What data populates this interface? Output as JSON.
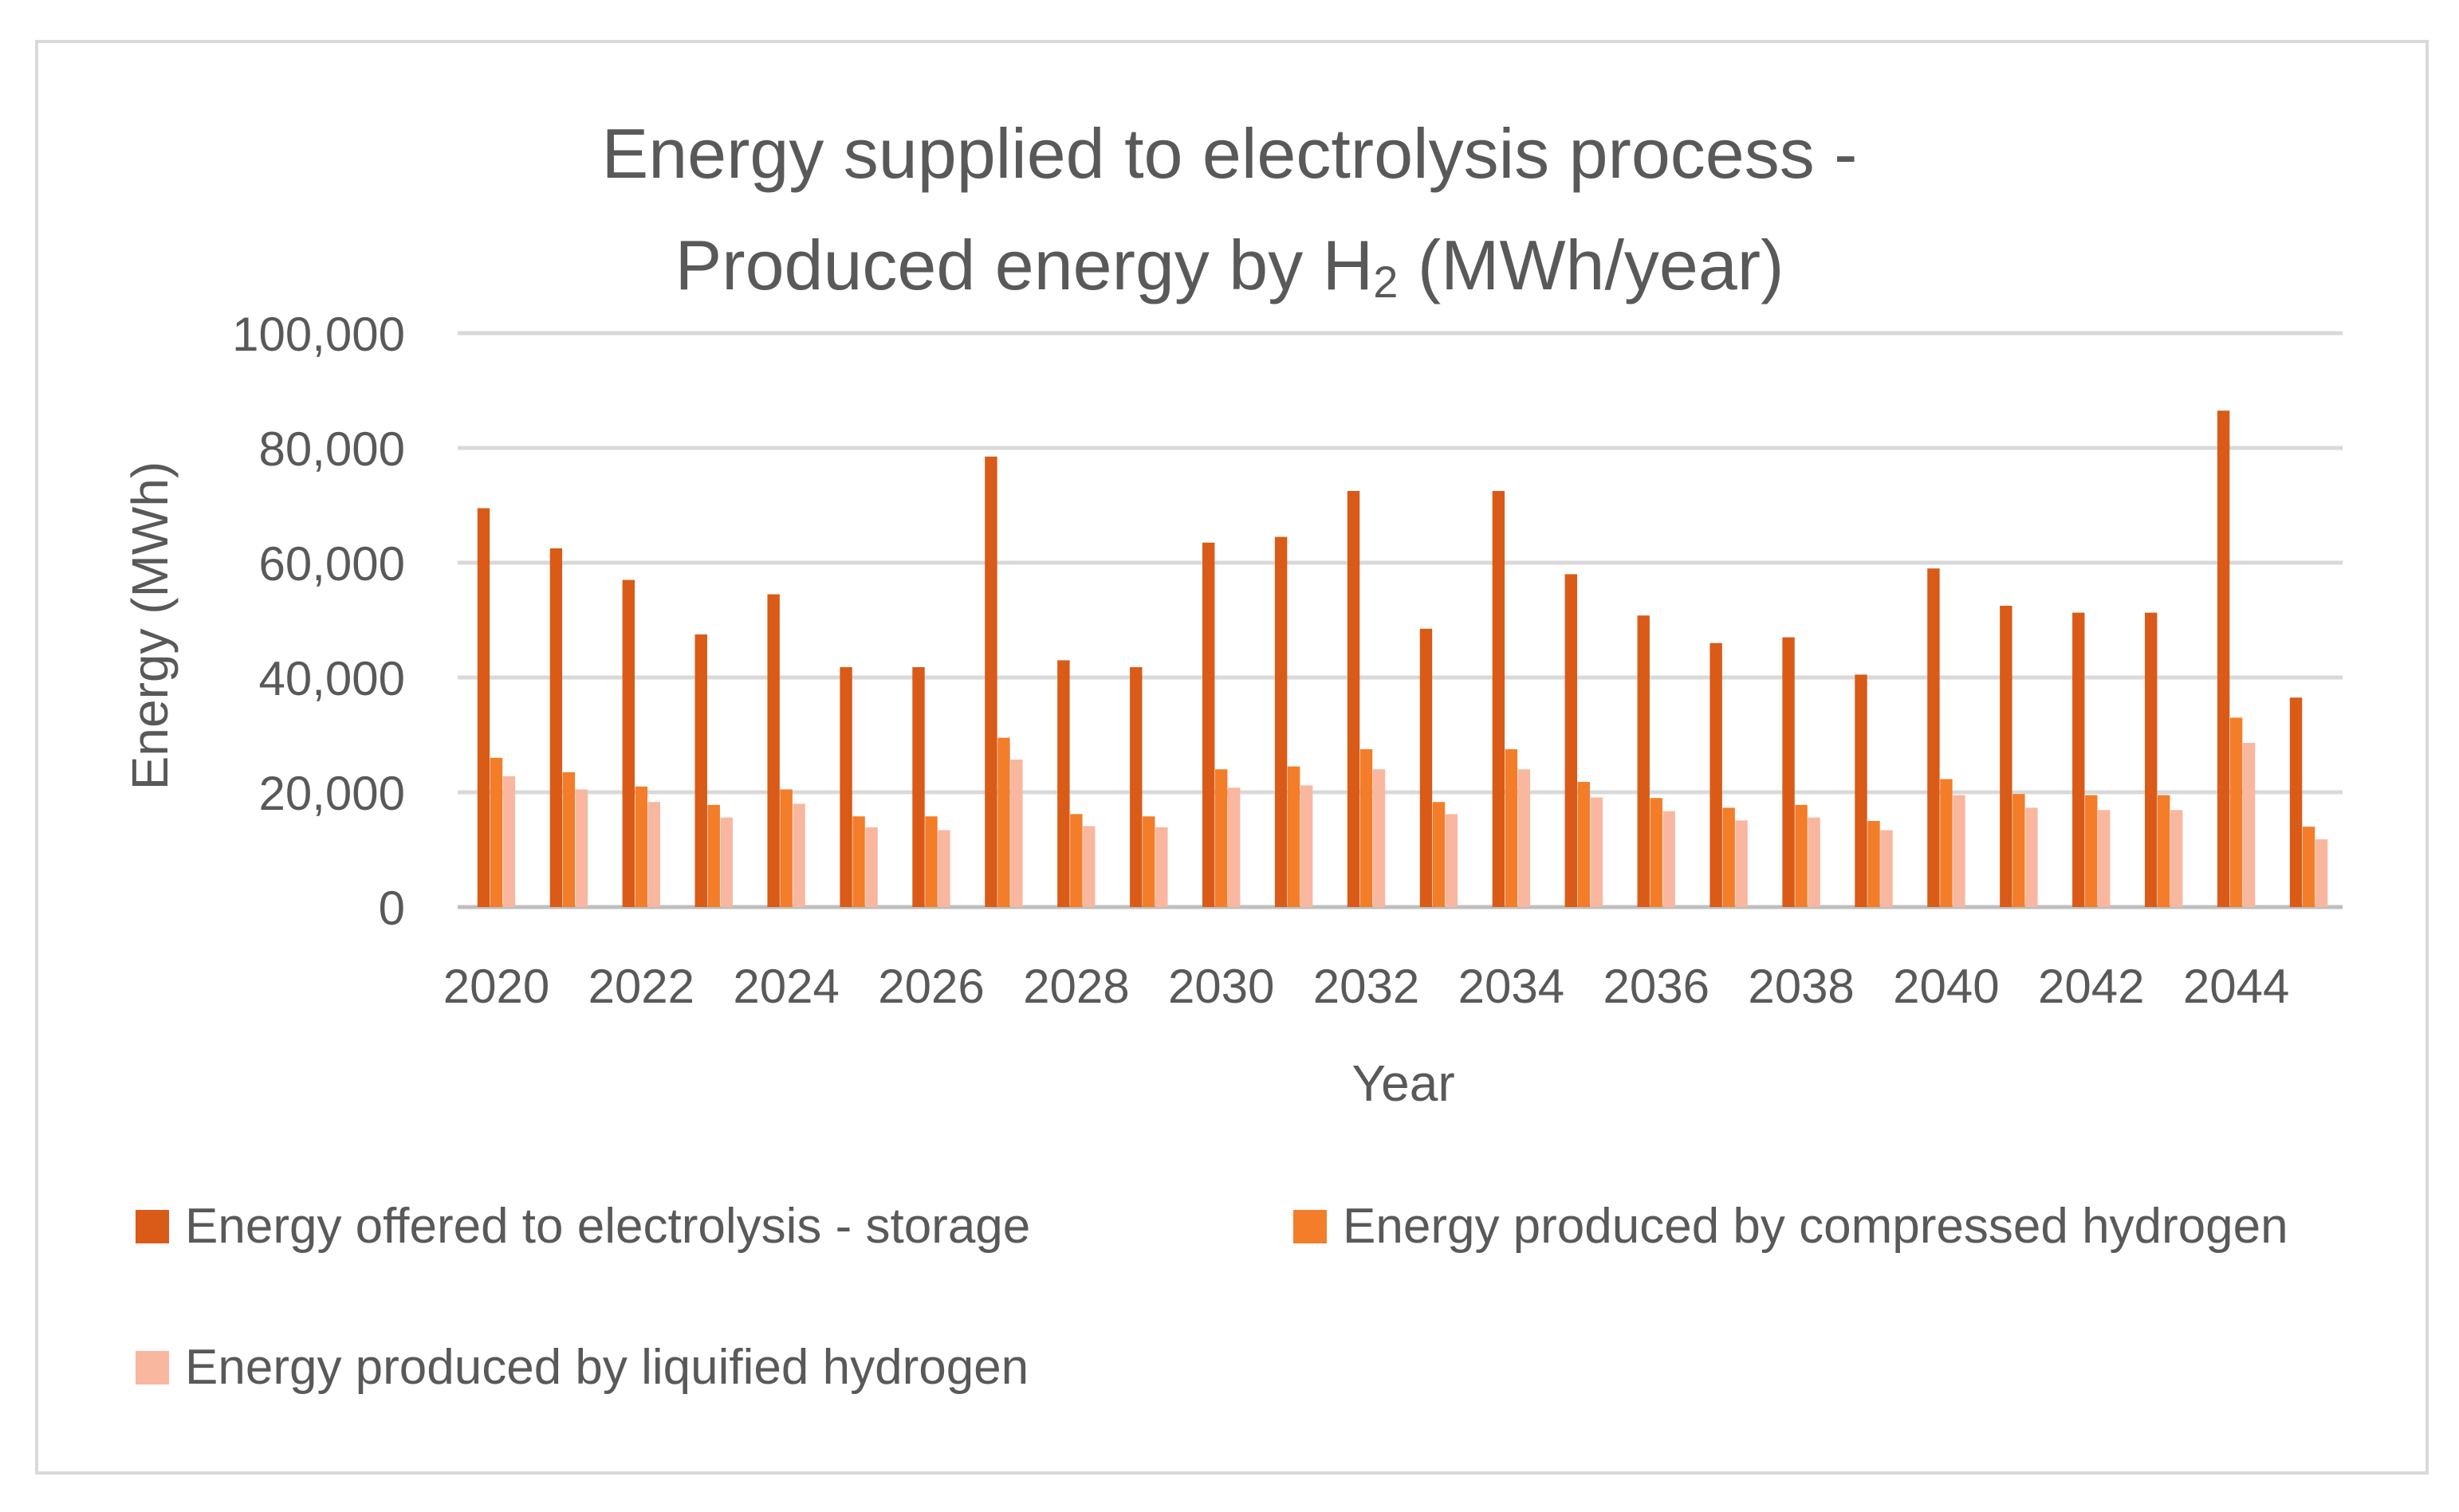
{
  "chart_data": {
    "type": "bar",
    "title_line1": "Energy supplied to electrolysis process -",
    "title_line2_main": "Produced energy by H",
    "title_line2_sub": "2",
    "title_line2_tail": " (MWh/year)",
    "xlabel": "Year",
    "ylabel": "Energy (MWh)",
    "ylim": [
      0,
      100000
    ],
    "ytick_values": [
      0,
      20000,
      40000,
      60000,
      80000,
      100000
    ],
    "ytick_labels": [
      "0",
      "20,000",
      "40,000",
      "60,000",
      "80,000",
      "100,000"
    ],
    "categories": [
      "2020",
      "2021",
      "2022",
      "2023",
      "2024",
      "2025",
      "2026",
      "2027",
      "2028",
      "2029",
      "2030",
      "2031",
      "2032",
      "2033",
      "2034",
      "2035",
      "2036",
      "2037",
      "2038",
      "2039",
      "2040",
      "2041",
      "2042",
      "2043",
      "2044",
      "2045"
    ],
    "xtick_labels": [
      "2020",
      "2022",
      "2024",
      "2026",
      "2028",
      "2030",
      "2032",
      "2034",
      "2036",
      "2038",
      "2040",
      "2042",
      "2044"
    ],
    "series": [
      {
        "name": "Energy offered to electrolysis - storage",
        "color": "#d95b17",
        "values": [
          69500,
          62500,
          57000,
          47500,
          54500,
          41800,
          41800,
          78500,
          43000,
          41800,
          63500,
          64500,
          72500,
          48500,
          72500,
          58000,
          50800,
          46000,
          47000,
          40500,
          59000,
          52500,
          51300,
          51300,
          86500,
          36500
        ]
      },
      {
        "name": "Energy produced by compressed hydrogen",
        "color": "#f37d28",
        "values": [
          26000,
          23500,
          21000,
          17800,
          20500,
          15800,
          15800,
          29500,
          16200,
          15800,
          24000,
          24500,
          27500,
          18300,
          27500,
          21800,
          19000,
          17300,
          17800,
          15000,
          22300,
          19700,
          19500,
          19500,
          33000,
          14000
        ]
      },
      {
        "name": "Energy produced by liquified hydrogen",
        "color": "#f9b7a0",
        "values": [
          22800,
          20500,
          18300,
          15600,
          18000,
          13900,
          13400,
          25700,
          14100,
          13900,
          20800,
          21200,
          24000,
          16200,
          24000,
          19100,
          16700,
          15100,
          15600,
          13400,
          19500,
          17300,
          16900,
          16900,
          28600,
          11800
        ]
      }
    ],
    "legend_position": "bottom"
  }
}
